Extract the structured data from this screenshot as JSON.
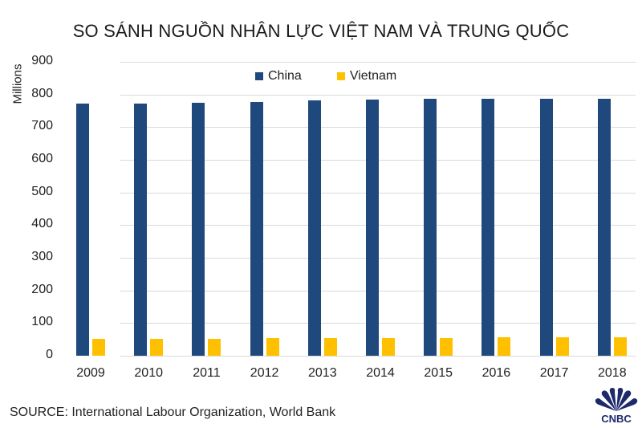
{
  "title": "SO SÁNH NGUỒN NHÂN LỰC VIỆT NAM VÀ TRUNG QUỐC",
  "source": "SOURCE: International Labour Organization, World Bank",
  "logo": {
    "text": "CNBC",
    "icon": "nbc-peacock-icon"
  },
  "colors": {
    "china": "#1f497d",
    "vietnam": "#ffc000",
    "grid": "#d9d9d9"
  },
  "chart_data": {
    "type": "bar",
    "title": "SO SÁNH NGUỒN NHÂN LỰC VIỆT NAM VÀ TRUNG QUỐC",
    "xlabel": "",
    "ylabel": "Millions",
    "ylim": [
      0,
      900
    ],
    "yticks": [
      0,
      100,
      200,
      300,
      400,
      500,
      600,
      700,
      800,
      900
    ],
    "grid": true,
    "legend_position": "top-center",
    "categories": [
      "2009",
      "2010",
      "2011",
      "2012",
      "2013",
      "2014",
      "2015",
      "2016",
      "2017",
      "2018"
    ],
    "series": [
      {
        "name": "China",
        "color": "#1f497d",
        "values": [
          772,
          772,
          775,
          778,
          782,
          784,
          786,
          788,
          788,
          786
        ]
      },
      {
        "name": "Vietnam",
        "color": "#ffc000",
        "values": [
          51,
          51,
          52,
          53,
          54,
          54,
          55,
          56,
          56,
          56
        ]
      }
    ]
  }
}
